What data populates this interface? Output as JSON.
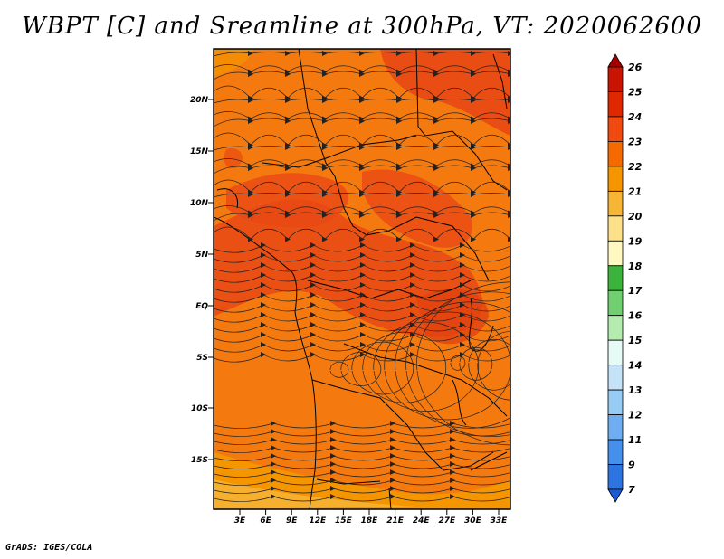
{
  "title": "WBPT [C] and Sreamline at 300hPa, VT: 2020062600",
  "credit": "GrADS: IGES/COLA",
  "map": {
    "lat_labels": [
      "20N",
      "15N",
      "10N",
      "5N",
      "EQ",
      "5S",
      "10S",
      "15S"
    ],
    "lon_labels": [
      "3E",
      "6E",
      "9E",
      "12E",
      "15E",
      "18E",
      "21E",
      "24E",
      "27E",
      "30E",
      "33E"
    ],
    "field": "Wet-bulb potential temperature (C)",
    "level": "300hPa",
    "valid_time": "2020062600"
  },
  "colorbar": {
    "labels": [
      "26",
      "25",
      "24",
      "23",
      "22",
      "21",
      "20",
      "19",
      "18",
      "17",
      "16",
      "15",
      "14",
      "13",
      "12",
      "11",
      "9",
      "7"
    ],
    "colors": [
      "#a50000",
      "#c81400",
      "#e02800",
      "#f04a10",
      "#f56a00",
      "#f59500",
      "#f7b536",
      "#fde08a",
      "#fff8c0",
      "#3cb43c",
      "#70d070",
      "#b4ecb0",
      "#e6fbf5",
      "#c4e2f8",
      "#96cbf4",
      "#6eaef0",
      "#4490ea",
      "#2e74e0",
      "#1e5ad4"
    ]
  }
}
